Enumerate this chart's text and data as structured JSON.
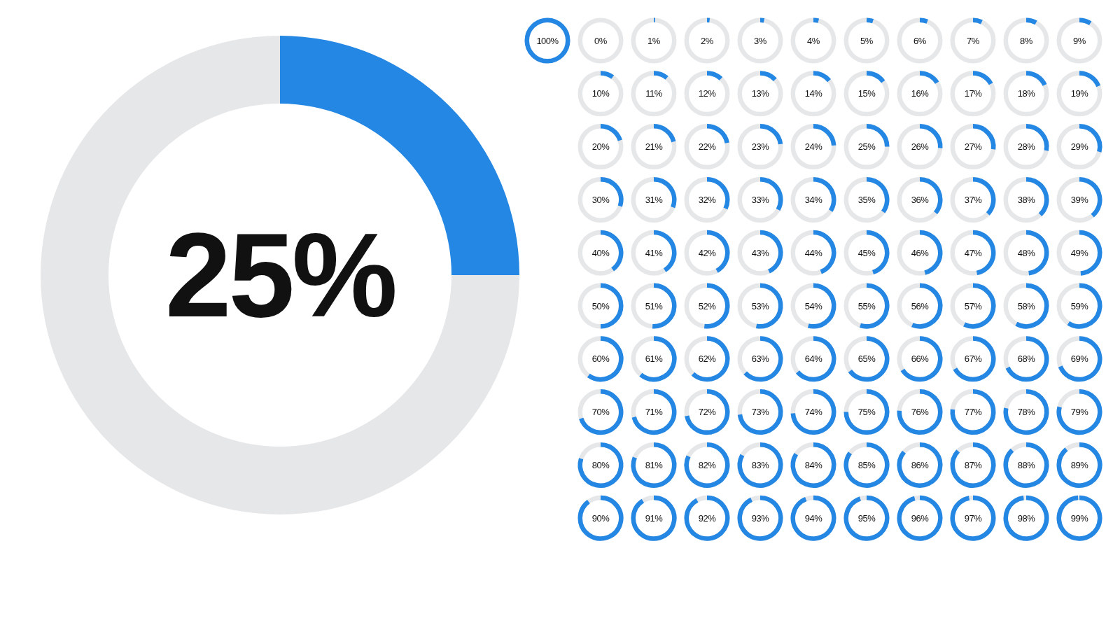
{
  "chart_data": [
    {
      "type": "donut",
      "categories": [
        null,
        null
      ],
      "values": [
        25,
        75
      ],
      "colors": [
        "#2487e3",
        "#e6e7e9"
      ],
      "annotations": [
        "25%"
      ]
    },
    {
      "type": "other",
      "color": "#2487e3",
      "values": [
        100,
        0,
        1,
        2,
        3,
        4,
        5,
        6,
        7,
        8,
        9,
        10,
        11,
        12,
        13,
        14,
        15,
        16,
        17,
        18,
        19,
        20,
        21,
        22,
        23,
        24,
        25,
        26,
        27,
        28,
        29,
        30,
        31,
        32,
        33,
        34,
        35,
        36,
        37,
        38,
        39,
        40,
        41,
        42,
        43,
        44,
        45,
        46,
        47,
        48,
        49,
        50,
        51,
        52,
        53,
        54,
        55,
        56,
        57,
        58,
        59,
        60,
        61,
        62,
        63,
        64,
        65,
        66,
        67,
        68,
        69,
        70,
        71,
        72,
        73,
        74,
        75,
        76,
        77,
        78,
        79,
        80,
        81,
        82,
        83,
        84,
        85,
        86,
        87,
        88,
        89,
        90,
        91,
        92,
        93,
        94,
        95,
        96,
        97,
        98,
        99
      ],
      "value_labels": [
        "100%",
        "0%",
        "1%",
        "2%",
        "3%",
        "4%",
        "5%",
        "6%",
        "7%",
        "8%",
        "9%",
        "10%",
        "11%",
        "12%",
        "13%",
        "14%",
        "15%",
        "16%",
        "17%",
        "18%",
        "19%",
        "20%",
        "21%",
        "22%",
        "23%",
        "24%",
        "25%",
        "26%",
        "27%",
        "28%",
        "29%",
        "30%",
        "31%",
        "32%",
        "33%",
        "34%",
        "35%",
        "36%",
        "37%",
        "38%",
        "39%",
        "40%",
        "41%",
        "42%",
        "43%",
        "44%",
        "45%",
        "46%",
        "47%",
        "48%",
        "49%",
        "50%",
        "51%",
        "52%",
        "53%",
        "54%",
        "55%",
        "56%",
        "57%",
        "58%",
        "59%",
        "60%",
        "61%",
        "62%",
        "63%",
        "64%",
        "65%",
        "66%",
        "67%",
        "68%",
        "69%",
        "70%",
        "71%",
        "72%",
        "73%",
        "74%",
        "75%",
        "76%",
        "77%",
        "78%",
        "79%",
        "80%",
        "81%",
        "82%",
        "83%",
        "84%",
        "85%",
        "86%",
        "87%",
        "88%",
        "89%",
        "90%",
        "91%",
        "92%",
        "93%",
        "94%",
        "95%",
        "96%",
        "97%",
        "98%",
        "99%"
      ]
    }
  ]
}
